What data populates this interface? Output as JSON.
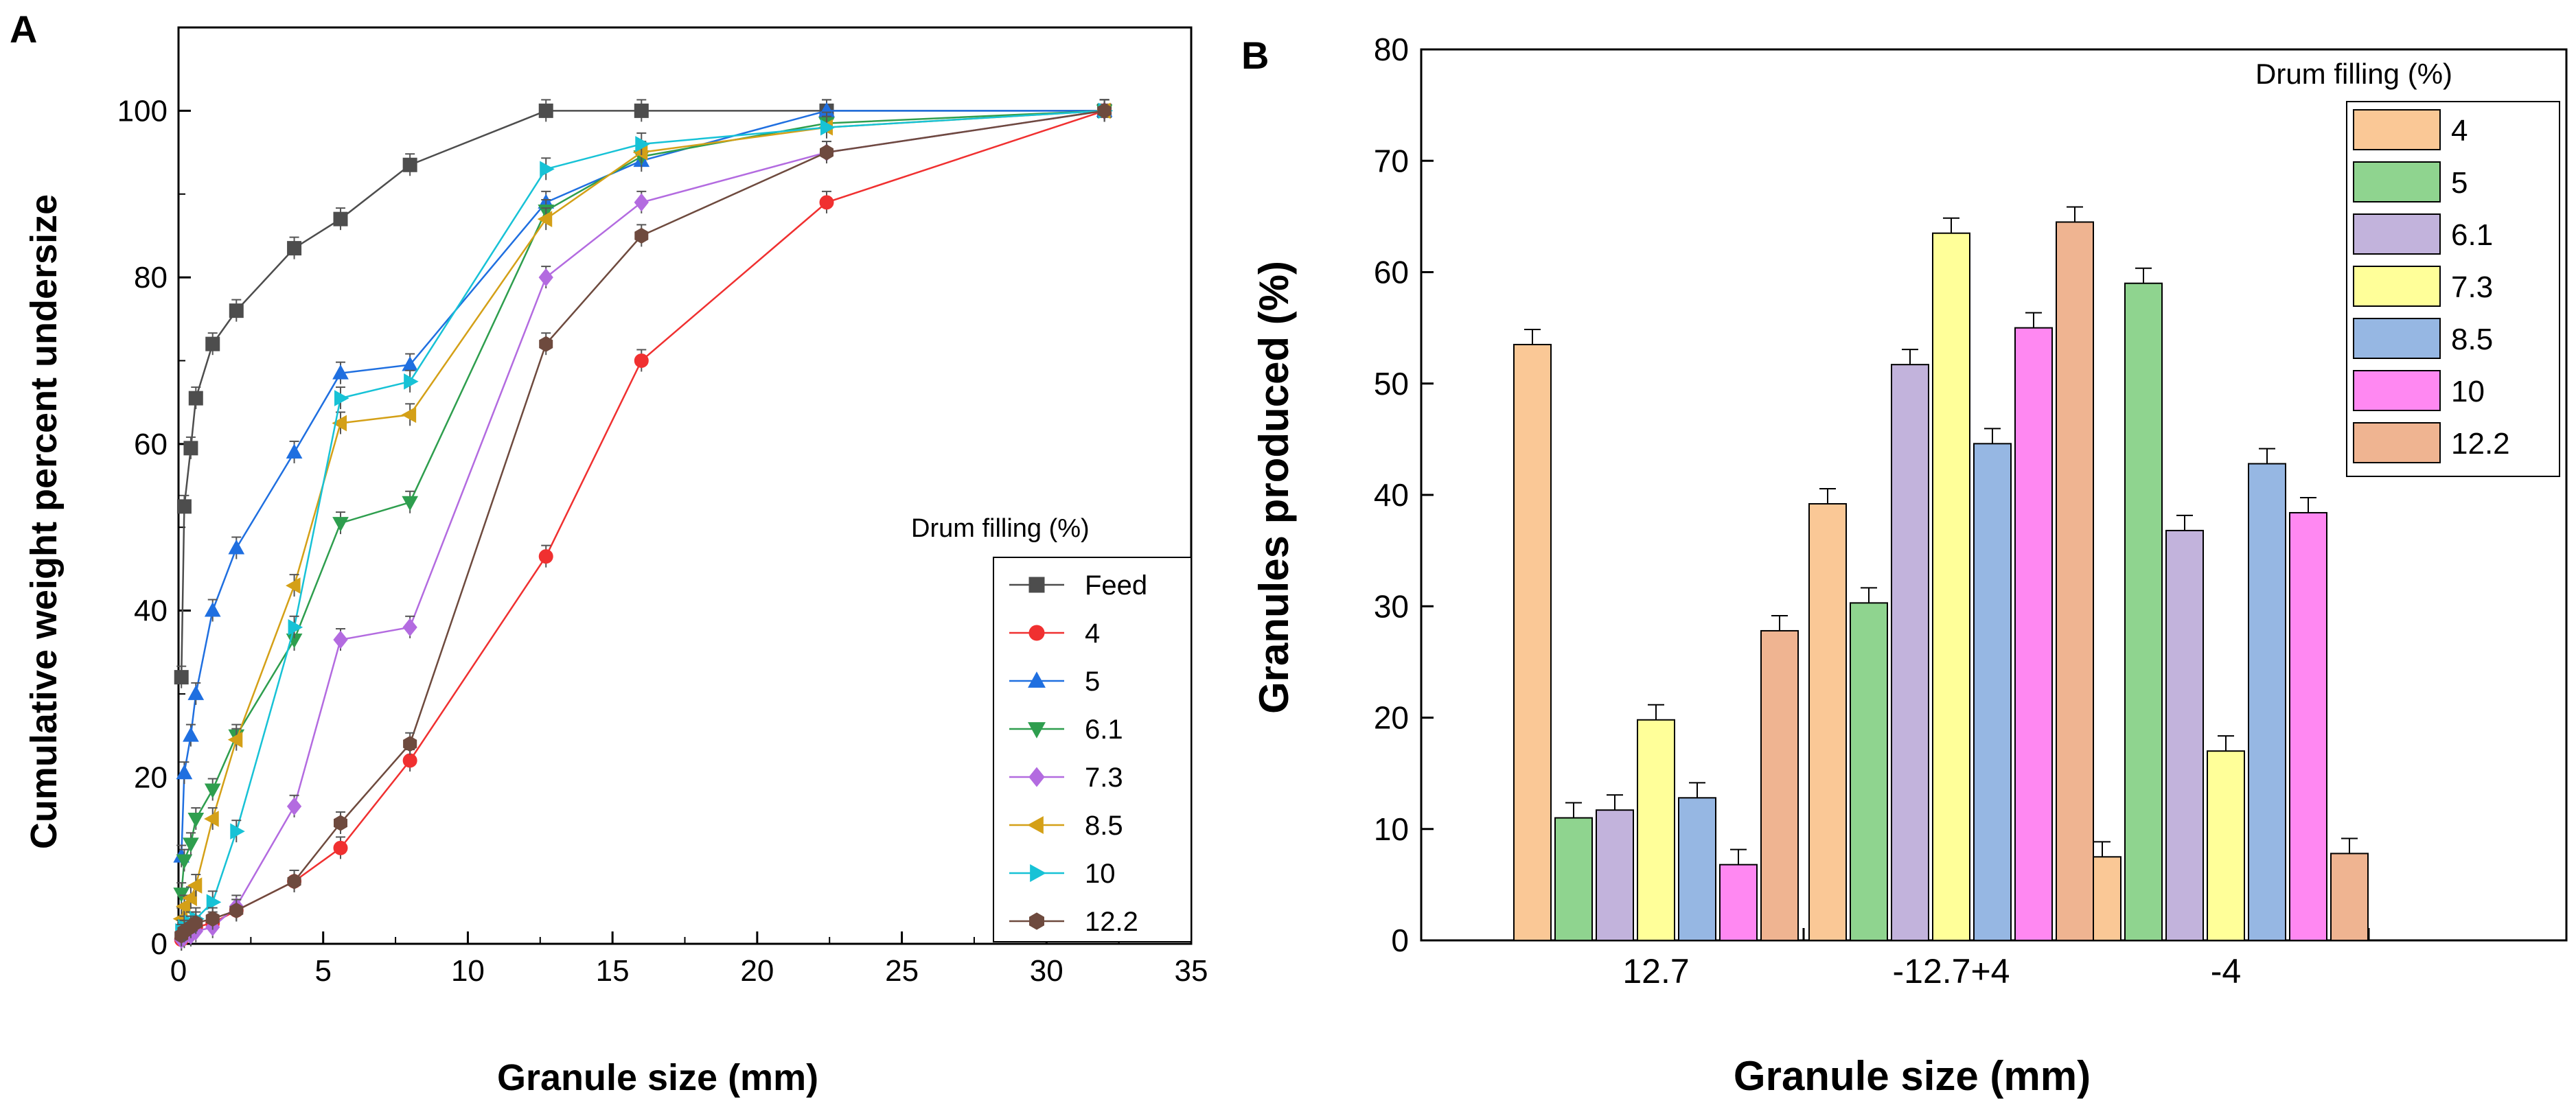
{
  "chart_data": [
    {
      "panel_label": "A",
      "type": "line",
      "xlabel": "Granule size (mm)",
      "ylabel": "Cumulative weight percent undersize",
      "xlim": [
        0,
        35
      ],
      "ylim": [
        0,
        110
      ],
      "xticks": [
        "0",
        "5",
        "10",
        "15",
        "20",
        "25",
        "30",
        "35"
      ],
      "yticks": [
        "0",
        "20",
        "40",
        "60",
        "80",
        "100"
      ],
      "legend_title": "Drum filling (%)",
      "legend_position": "bottom-right",
      "series": [
        {
          "name": "Feed",
          "color": "#4d4d4d",
          "marker": "square",
          "x": [
            0.1,
            0.2,
            0.425,
            0.6,
            1.18,
            2,
            4,
            5.6,
            8,
            12.7,
            16,
            22.4,
            32
          ],
          "y": [
            32,
            52.5,
            59.5,
            65.5,
            72,
            76,
            83.5,
            87,
            93.5,
            100,
            100,
            100,
            100
          ]
        },
        {
          "name": "4",
          "color": "#f03030",
          "marker": "circle",
          "x": [
            0.1,
            0.2,
            0.425,
            0.6,
            1.18,
            2,
            4,
            5.6,
            8,
            12.7,
            16,
            22.4,
            32
          ],
          "y": [
            0.5,
            1,
            1.5,
            2,
            2.5,
            4,
            7.5,
            11.5,
            22,
            46.5,
            70,
            89,
            100
          ]
        },
        {
          "name": "5",
          "color": "#1f6fe0",
          "marker": "triangle-up",
          "x": [
            0.1,
            0.2,
            0.425,
            0.6,
            1.18,
            2,
            4,
            5.6,
            8,
            12.7,
            16,
            22.4,
            32
          ],
          "y": [
            10.5,
            20.5,
            25,
            30,
            40,
            47.5,
            59,
            68.5,
            69.5,
            89,
            94,
            100,
            100
          ]
        },
        {
          "name": "6.1",
          "color": "#2e9e4e",
          "marker": "triangle-down",
          "x": [
            0.1,
            0.2,
            0.425,
            0.6,
            1.18,
            2,
            4,
            5.6,
            8,
            12.7,
            16,
            22.4,
            32
          ],
          "y": [
            6,
            10,
            12,
            15,
            18.5,
            25,
            36.5,
            50.5,
            53,
            88,
            94.5,
            98.5,
            100
          ]
        },
        {
          "name": "7.3",
          "color": "#b36be0",
          "marker": "diamond",
          "x": [
            0.1,
            0.2,
            0.425,
            0.6,
            1.18,
            2,
            4,
            5.6,
            8,
            12.7,
            16,
            22.4,
            32
          ],
          "y": [
            0.5,
            0.8,
            1,
            1.5,
            2,
            4.5,
            16.5,
            36.5,
            38,
            80,
            89,
            95,
            100
          ]
        },
        {
          "name": "8.5",
          "color": "#d4a017",
          "marker": "triangle-left",
          "x": [
            0.1,
            0.2,
            0.425,
            0.6,
            1.18,
            2,
            4,
            5.6,
            8,
            12.7,
            16,
            22.4,
            32
          ],
          "y": [
            3,
            4.5,
            5.5,
            7,
            15,
            24.5,
            43,
            62.5,
            63.5,
            87,
            95,
            98,
            100
          ]
        },
        {
          "name": "10",
          "color": "#17c2d6",
          "marker": "triangle-right",
          "x": [
            0.1,
            0.2,
            0.425,
            0.6,
            1.18,
            2,
            4,
            5.6,
            8,
            12.7,
            16,
            22.4,
            32
          ],
          "y": [
            1.5,
            2,
            2.5,
            3,
            5,
            13.5,
            38,
            65.5,
            67.5,
            93,
            96,
            98,
            100
          ]
        },
        {
          "name": "12.2",
          "color": "#6e4a3e",
          "marker": "hexagon",
          "x": [
            0.1,
            0.2,
            0.425,
            0.6,
            1.18,
            2,
            4,
            5.6,
            8,
            12.7,
            16,
            22.4,
            32
          ],
          "y": [
            1,
            1.5,
            2,
            2.5,
            3,
            4,
            7.5,
            14.5,
            24,
            72,
            85,
            95,
            100
          ]
        }
      ]
    },
    {
      "panel_label": "B",
      "type": "bar",
      "xlabel": "Granule size (mm)",
      "ylabel": "Granules produced (%)",
      "ylim": [
        0,
        80
      ],
      "yticks": [
        "0",
        "10",
        "20",
        "30",
        "40",
        "50",
        "60",
        "70",
        "80"
      ],
      "categories": [
        "12.7",
        "-12.7+4",
        "-4"
      ],
      "legend_title": "Drum filling (%)",
      "legend_position": "top-right",
      "series": [
        {
          "name": "4",
          "color": "#fac896",
          "values": [
            53.5,
            39.2,
            7.5
          ]
        },
        {
          "name": "5",
          "color": "#8fd48f",
          "values": [
            11,
            30.3,
            59
          ]
        },
        {
          "name": "6.1",
          "color": "#c2b3dc",
          "values": [
            11.7,
            51.7,
            36.8
          ]
        },
        {
          "name": "7.3",
          "color": "#ffff99",
          "values": [
            19.8,
            63.5,
            17
          ]
        },
        {
          "name": "8.5",
          "color": "#96b7e3",
          "values": [
            12.8,
            44.6,
            42.8
          ]
        },
        {
          "name": "10",
          "color": "#ff88f2",
          "values": [
            6.8,
            55,
            38.4
          ]
        },
        {
          "name": "12.2",
          "color": "#efb491",
          "values": [
            27.8,
            64.5,
            7.8
          ]
        }
      ]
    }
  ]
}
